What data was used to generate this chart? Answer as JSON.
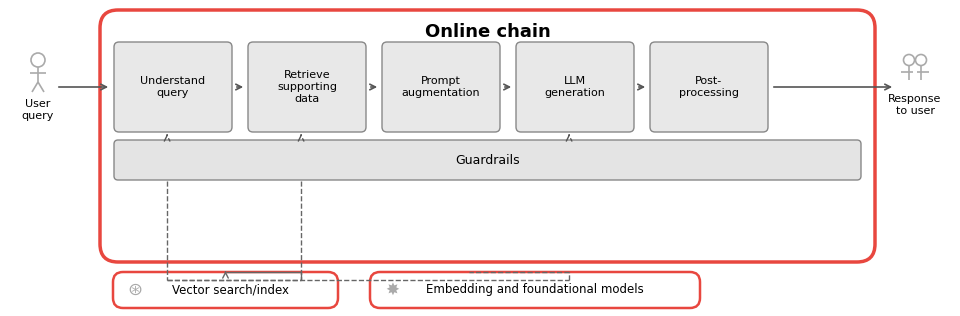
{
  "title": "Online chain",
  "bg_color": "#ffffff",
  "online_chain_border_color": "#e8473f",
  "online_chain_fill": "#ffffff",
  "box_fill": "#e8e8e8",
  "box_border": "#888888",
  "guardrail_fill": "#e4e4e4",
  "guardrail_border": "#888888",
  "bottom_box_border": "#e8473f",
  "bottom_box_fill": "#ffffff",
  "steps": [
    {
      "label": "Understand\nquery"
    },
    {
      "label": "Retrieve\nsupporting\ndata"
    },
    {
      "label": "Prompt\naugmentation"
    },
    {
      "label": "LLM\ngeneration"
    },
    {
      "label": "Post-\nprocessing"
    }
  ],
  "guardrails_label": "Guardrails",
  "bottom_items": [
    {
      "label": "Vector search/index"
    },
    {
      "label": "Embedding and foundational models"
    }
  ],
  "user_query_label": "User\nquery",
  "response_label": "Response\nto user",
  "arrow_color": "#555555",
  "line_color": "#555555"
}
